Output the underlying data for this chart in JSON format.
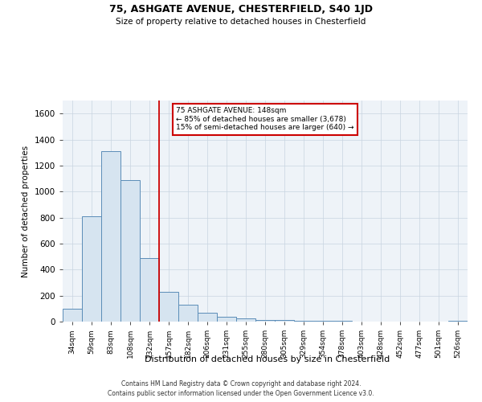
{
  "title1": "75, ASHGATE AVENUE, CHESTERFIELD, S40 1JD",
  "title2": "Size of property relative to detached houses in Chesterfield",
  "xlabel": "Distribution of detached houses by size in Chesterfield",
  "ylabel": "Number of detached properties",
  "categories": [
    "34sqm",
    "59sqm",
    "83sqm",
    "108sqm",
    "132sqm",
    "157sqm",
    "182sqm",
    "206sqm",
    "231sqm",
    "255sqm",
    "280sqm",
    "305sqm",
    "329sqm",
    "354sqm",
    "378sqm",
    "403sqm",
    "428sqm",
    "452sqm",
    "477sqm",
    "501sqm",
    "526sqm"
  ],
  "values": [
    100,
    810,
    1310,
    1090,
    490,
    230,
    130,
    65,
    40,
    25,
    15,
    10,
    6,
    5,
    4,
    3,
    2,
    2,
    2,
    2,
    8
  ],
  "bar_color": "#d6e4f0",
  "bar_edge_color": "#5b8db8",
  "vline_x_idx": 4,
  "vline_color": "#cc0000",
  "annotation_line1": "75 ASHGATE AVENUE: 148sqm",
  "annotation_line2": "← 85% of detached houses are smaller (3,678)",
  "annotation_line3": "15% of semi-detached houses are larger (640) →",
  "annotation_box_color": "#ffffff",
  "annotation_box_edge": "#cc0000",
  "ylim": [
    0,
    1700
  ],
  "yticks": [
    0,
    200,
    400,
    600,
    800,
    1000,
    1200,
    1400,
    1600
  ],
  "footer1": "Contains HM Land Registry data © Crown copyright and database right 2024.",
  "footer2": "Contains public sector information licensed under the Open Government Licence v3.0.",
  "grid_color": "#c8d4e0",
  "background_color": "#eef3f8"
}
